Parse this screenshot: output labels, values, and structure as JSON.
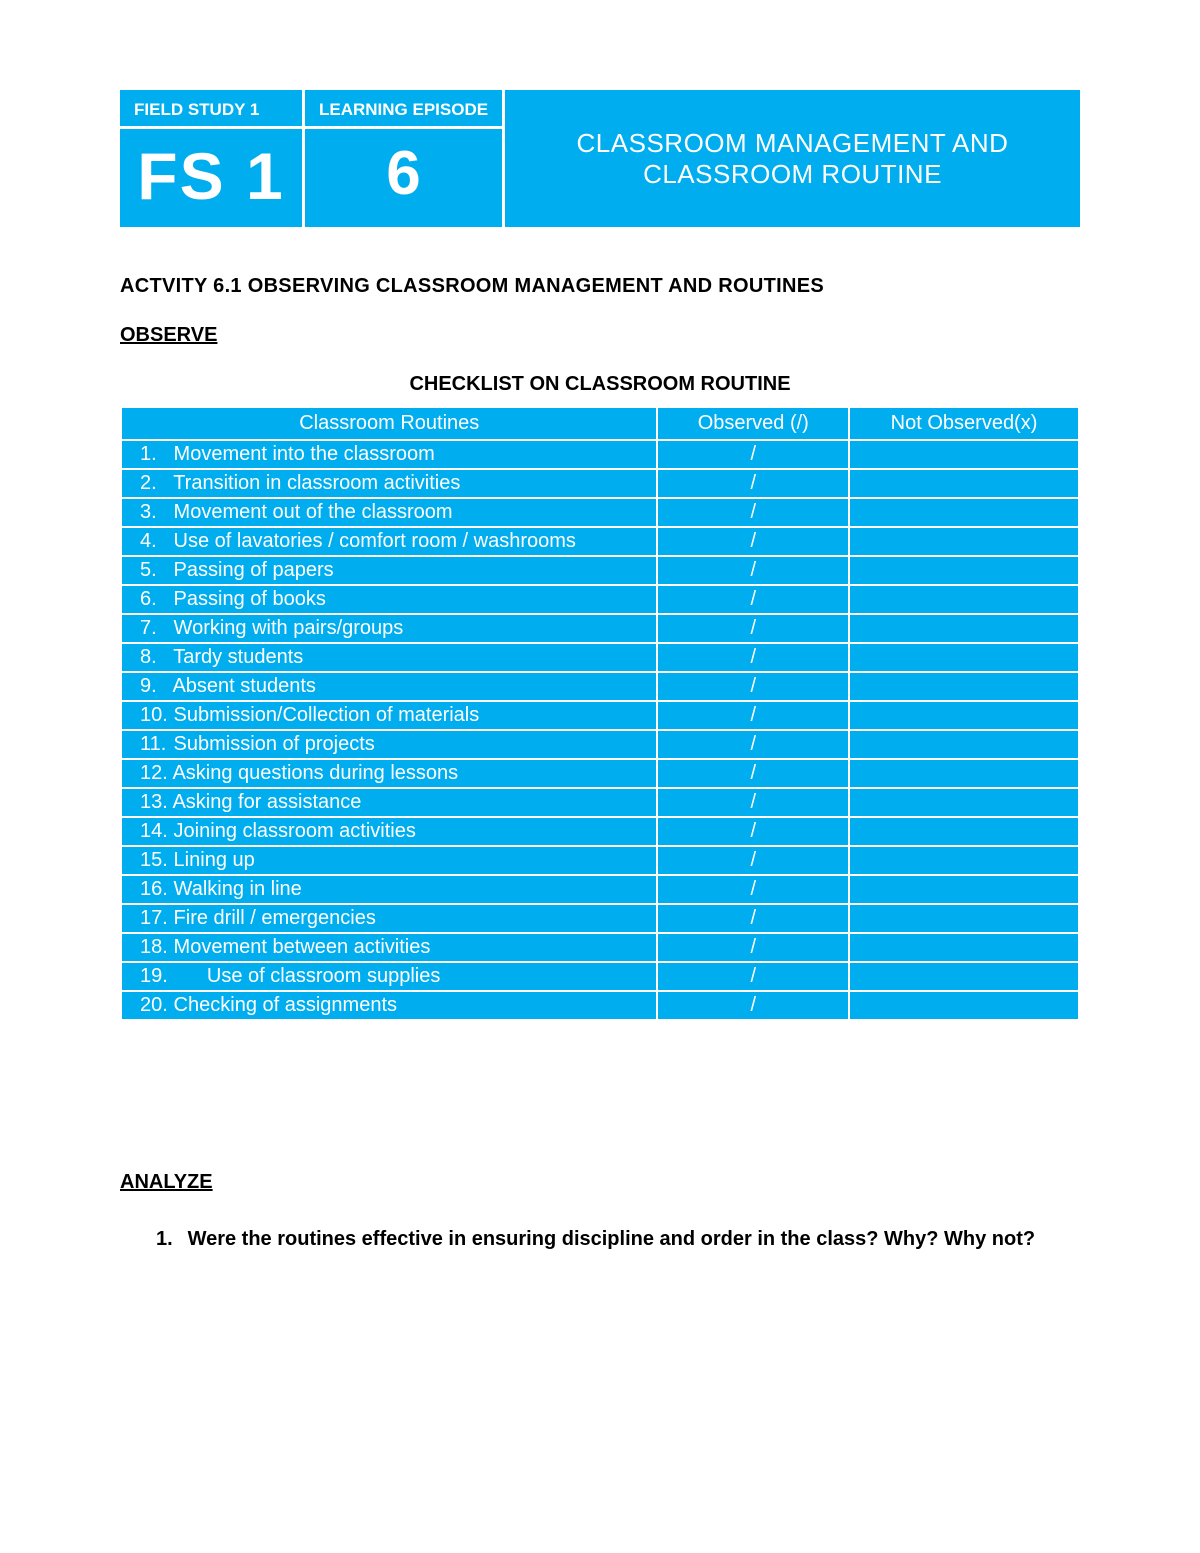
{
  "colors": {
    "accent": "#00aeef",
    "text_on_accent": "#ffffff",
    "body_text": "#000000",
    "background": "#ffffff",
    "table_border": "#ffffff"
  },
  "banner": {
    "field_study_label": "FIELD STUDY 1",
    "learning_episode_label": "LEARNING EPISODE",
    "fs_code": "FS 1",
    "episode_number": "6",
    "title": "CLASSROOM MANAGEMENT AND CLASSROOM ROUTINE"
  },
  "activity_title": "ACTVITY 6.1 OBSERVING CLASSROOM MANAGEMENT AND ROUTINES",
  "observe_heading": "OBSERVE",
  "checklist_title": "CHECKLIST ON CLASSROOM ROUTINE",
  "table": {
    "columns": [
      "Classroom Routines",
      "Observed (/)",
      "Not Observed(x)"
    ],
    "col_widths_pct": [
      56,
      20,
      24
    ],
    "header_fontsize": 20,
    "cell_fontsize": 20,
    "rows": [
      {
        "num": "1.",
        "text": "Movement into the classroom",
        "observed": "/",
        "not_observed": ""
      },
      {
        "num": "2.",
        "text": "Transition in classroom activities",
        "observed": "/",
        "not_observed": ""
      },
      {
        "num": "3.",
        "text": "Movement out of the classroom",
        "observed": "/",
        "not_observed": ""
      },
      {
        "num": "4.",
        "text": "Use of lavatories / comfort room / washrooms",
        "observed": "/",
        "not_observed": ""
      },
      {
        "num": "5.",
        "text": "Passing of papers",
        "observed": "/",
        "not_observed": ""
      },
      {
        "num": "6.",
        "text": "Passing of books",
        "observed": "/",
        "not_observed": ""
      },
      {
        "num": "7.",
        "text": "Working with pairs/groups",
        "observed": "/",
        "not_observed": ""
      },
      {
        "num": "8.",
        "text": "Tardy students",
        "observed": "/",
        "not_observed": ""
      },
      {
        "num": "9.",
        "text": "Absent students",
        "observed": "/",
        "not_observed": ""
      },
      {
        "num": "10.",
        "text": "Submission/Collection of materials",
        "observed": "/",
        "not_observed": ""
      },
      {
        "num": "11.",
        "text": "Submission of projects",
        "observed": "/",
        "not_observed": ""
      },
      {
        "num": "12.",
        "text": "Asking questions during lessons",
        "observed": "/",
        "not_observed": ""
      },
      {
        "num": "13.",
        "text": "Asking for assistance",
        "observed": "/",
        "not_observed": ""
      },
      {
        "num": "14.",
        "text": "Joining classroom activities",
        "observed": "/",
        "not_observed": ""
      },
      {
        "num": "15.",
        "text": "Lining up",
        "observed": "/",
        "not_observed": ""
      },
      {
        "num": "16.",
        "text": "Walking in line",
        "observed": "/",
        "not_observed": ""
      },
      {
        "num": "17.",
        "text": "Fire drill / emergencies",
        "observed": "/",
        "not_observed": ""
      },
      {
        "num": "18.",
        "text": "Movement between activities",
        "observed": "/",
        "not_observed": ""
      },
      {
        "num": "19.",
        "text": "      Use of classroom supplies",
        "observed": "/",
        "not_observed": ""
      },
      {
        "num": "20.",
        "text": "Checking of assignments",
        "observed": "/",
        "not_observed": ""
      }
    ]
  },
  "analyze": {
    "heading": "ANALYZE",
    "questions": [
      {
        "num": "1.",
        "text": "Were the routines effective in ensuring discipline and order in the class? Why? Why not?"
      }
    ]
  }
}
